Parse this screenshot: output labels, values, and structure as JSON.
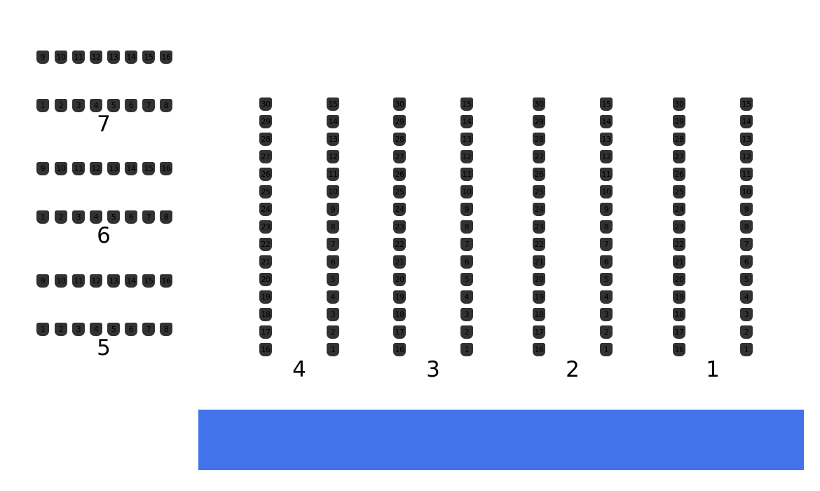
{
  "seat_map": {
    "left_sections": [
      {
        "label": "7",
        "rows": [
          [
            "9",
            "10",
            "11",
            "12",
            "13",
            "14",
            "15",
            "16"
          ],
          [
            "1",
            "2",
            "3",
            "4",
            "5",
            "6",
            "7",
            "8"
          ]
        ]
      },
      {
        "label": "6",
        "rows": [
          [
            "9",
            "10",
            "11",
            "12",
            "13",
            "14",
            "15",
            "16"
          ],
          [
            "1",
            "2",
            "3",
            "4",
            "5",
            "6",
            "7",
            "8"
          ]
        ]
      },
      {
        "label": "5",
        "rows": [
          [
            "9",
            "10",
            "11",
            "12",
            "13",
            "14",
            "15",
            "16"
          ],
          [
            "1",
            "2",
            "3",
            "4",
            "5",
            "6",
            "7",
            "8"
          ]
        ]
      }
    ],
    "right_sections": [
      {
        "label": "4",
        "columns": [
          [
            "30",
            "29",
            "28",
            "27",
            "26",
            "25",
            "24",
            "23",
            "22",
            "21",
            "20",
            "19",
            "18",
            "17",
            "16"
          ],
          [
            "15",
            "14",
            "13",
            "12",
            "11",
            "10",
            "9",
            "8",
            "7",
            "6",
            "5",
            "4",
            "3",
            "2",
            "1"
          ]
        ]
      },
      {
        "label": "3",
        "columns": [
          [
            "30",
            "29",
            "28",
            "27",
            "26",
            "25",
            "24",
            "23",
            "22",
            "21",
            "20",
            "19",
            "18",
            "17",
            "16"
          ],
          [
            "15",
            "14",
            "13",
            "12",
            "11",
            "10",
            "9",
            "8",
            "7",
            "6",
            "5",
            "4",
            "3",
            "2",
            "1"
          ]
        ]
      },
      {
        "label": "2",
        "columns": [
          [
            "30",
            "29",
            "28",
            "27",
            "26",
            "25",
            "24",
            "23",
            "22",
            "21",
            "20",
            "19",
            "18",
            "17",
            "16"
          ],
          [
            "15",
            "14",
            "13",
            "12",
            "11",
            "10",
            "9",
            "8",
            "7",
            "6",
            "5",
            "4",
            "3",
            "2",
            "1"
          ]
        ]
      },
      {
        "label": "1",
        "columns": [
          [
            "30",
            "29",
            "28",
            "27",
            "26",
            "25",
            "24",
            "23",
            "22",
            "21",
            "20",
            "19",
            "18",
            "17",
            "16"
          ],
          [
            "15",
            "14",
            "13",
            "12",
            "11",
            "10",
            "9",
            "8",
            "7",
            "6",
            "5",
            "4",
            "3",
            "2",
            "1"
          ]
        ]
      }
    ]
  },
  "colors": {
    "background": "#ffffff",
    "seat_fill": "#323232",
    "seat_text": "#000000",
    "section_label_text": "#000000",
    "stage_fill": "#4273eb"
  }
}
